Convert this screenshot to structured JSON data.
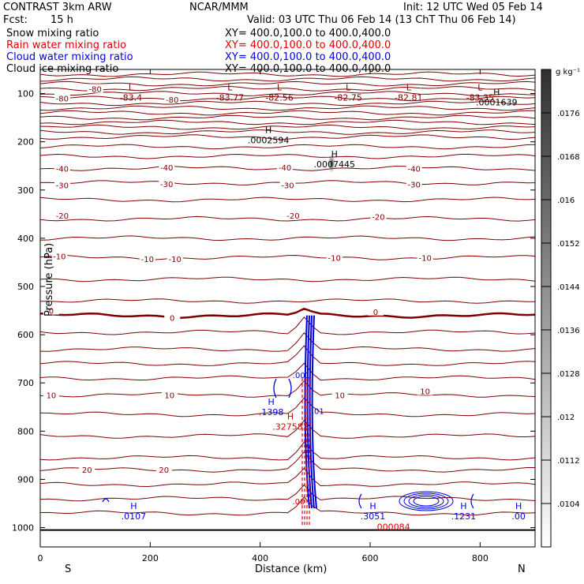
{
  "header": {
    "model": "CONTRAST  3km ARW",
    "org": "NCAR/MMM",
    "init": "Init: 12 UTC Wed 05 Feb 14",
    "fcst_label": "Fcst:",
    "fcst_value": "15 h",
    "valid": "Valid: 03 UTC Thu 06 Feb 14 (13 ChT Thu 06 Feb 14)",
    "fields": [
      {
        "name": "Snow mixing ratio",
        "color": "#000000",
        "xy": "XY= 400.0,100.0 to 400.0,400.0"
      },
      {
        "name": "Rain water mixing ratio",
        "color": "#e00000",
        "xy": "XY= 400.0,100.0 to 400.0,400.0"
      },
      {
        "name": "Cloud water mixing ratio",
        "color": "#0000e0",
        "xy": "XY= 400.0,100.0 to 400.0,400.0"
      },
      {
        "name": "Cloud ice mixing ratio",
        "color": "#000000",
        "xy": "XY= 400.0,100.0 to 400.0,400.0"
      }
    ]
  },
  "chart_data": {
    "type": "cross-section contour",
    "xlabel": "Distance (km)",
    "ylabel": "Pressure (hPa)",
    "xlim": [
      0,
      900
    ],
    "ylim": [
      1040,
      50
    ],
    "x_ticks": [
      0,
      200,
      400,
      600,
      800
    ],
    "y_ticks": [
      100,
      200,
      300,
      400,
      500,
      600,
      700,
      800,
      900,
      1000
    ],
    "x_end_labels": {
      "left": "S",
      "right": "N"
    },
    "colorbar": {
      "unit": "g kg⁻¹",
      "labels": [
        ".0176",
        ".0168",
        ".016",
        ".0152",
        ".0144",
        ".0136",
        ".0128",
        ".012",
        ".0112",
        ".0104"
      ]
    },
    "temperature_contours_C": [
      {
        "p": 90,
        "label": "-80"
      },
      {
        "p": 110,
        "label": "-80"
      },
      {
        "p": 112,
        "label": "-80"
      },
      {
        "p": 255,
        "label": "-40"
      },
      {
        "p": 285,
        "label": "-30"
      },
      {
        "p": 360,
        "label": "-20"
      },
      {
        "p": 440,
        "label": "-10"
      },
      {
        "p": 560,
        "label": "0"
      },
      {
        "p": 725,
        "label": "10"
      },
      {
        "p": 880,
        "label": "20"
      }
    ],
    "temperature_contour_labels": [
      {
        "x": 100,
        "p": 90,
        "text": "-80"
      },
      {
        "x": 40,
        "p": 110,
        "text": "-80"
      },
      {
        "x": 240,
        "p": 112,
        "text": "-80"
      },
      {
        "x": 40,
        "p": 255,
        "text": "-40"
      },
      {
        "x": 230,
        "p": 253,
        "text": "-40"
      },
      {
        "x": 445,
        "p": 253,
        "text": "-40"
      },
      {
        "x": 680,
        "p": 255,
        "text": "-40"
      },
      {
        "x": 40,
        "p": 290,
        "text": "-30"
      },
      {
        "x": 230,
        "p": 287,
        "text": "-30"
      },
      {
        "x": 450,
        "p": 290,
        "text": "-30"
      },
      {
        "x": 680,
        "p": 288,
        "text": "-30"
      },
      {
        "x": 40,
        "p": 353,
        "text": "-20"
      },
      {
        "x": 460,
        "p": 353,
        "text": "-20"
      },
      {
        "x": 615,
        "p": 355,
        "text": "-20"
      },
      {
        "x": 35,
        "p": 437,
        "text": "-10"
      },
      {
        "x": 195,
        "p": 443,
        "text": "-10"
      },
      {
        "x": 245,
        "p": 443,
        "text": "-10"
      },
      {
        "x": 535,
        "p": 440,
        "text": "-10"
      },
      {
        "x": 700,
        "p": 440,
        "text": "-10"
      },
      {
        "x": 20,
        "p": 550,
        "text": "0"
      },
      {
        "x": 240,
        "p": 565,
        "text": "0"
      },
      {
        "x": 610,
        "p": 552,
        "text": "0"
      },
      {
        "x": 20,
        "p": 725,
        "text": "10"
      },
      {
        "x": 235,
        "p": 725,
        "text": "10"
      },
      {
        "x": 545,
        "p": 725,
        "text": "10"
      },
      {
        "x": 700,
        "p": 717,
        "text": "10"
      },
      {
        "x": 85,
        "p": 880,
        "text": "20"
      },
      {
        "x": 225,
        "p": 880,
        "text": "20"
      }
    ],
    "extrema": [
      {
        "x": 165,
        "p": 100,
        "mark": "L",
        "value": "-83.4",
        "color": "#800000"
      },
      {
        "x": 345,
        "p": 100,
        "mark": "L",
        "value": "-83.77",
        "color": "#800000"
      },
      {
        "x": 435,
        "p": 100,
        "mark": "L",
        "value": "-82.56",
        "color": "#800000"
      },
      {
        "x": 560,
        "p": 100,
        "mark": "L",
        "value": "-82.75",
        "color": "#800000"
      },
      {
        "x": 670,
        "p": 100,
        "mark": "L",
        "value": "-82.81",
        "color": "#800000"
      },
      {
        "x": 800,
        "p": 100,
        "mark": "L",
        "value": "-83.35",
        "color": "#800000"
      },
      {
        "x": 830,
        "p": 110,
        "mark": "H",
        "value": ".0001639",
        "color": "#000000"
      },
      {
        "x": 415,
        "p": 188,
        "mark": "H",
        "value": ".0002594",
        "color": "#000000"
      },
      {
        "x": 535,
        "p": 238,
        "mark": "H",
        "value": ".0007445",
        "color": "#000000"
      },
      {
        "x": 420,
        "p": 752,
        "mark": "H",
        "value": ".1398",
        "color": "#0000e0"
      },
      {
        "x": 455,
        "p": 782,
        "mark": "H",
        "value": ".327583",
        "color": "#e00000"
      },
      {
        "x": 170,
        "p": 968,
        "mark": "H",
        "value": ".0107",
        "color": "#0000e0"
      },
      {
        "x": 605,
        "p": 968,
        "mark": "H",
        "value": ".3051",
        "color": "#0000e0"
      },
      {
        "x": 770,
        "p": 968,
        "mark": "H",
        "value": ".1231",
        "color": "#0000e0"
      },
      {
        "x": 870,
        "p": 968,
        "mark": "H",
        "value": ".00",
        "color": "#0000e0"
      },
      {
        "x": 640,
        "p": 990,
        "mark": "",
        "value": ".000084",
        "color": "#e00000"
      }
    ],
    "small_labels": [
      {
        "x": 475,
        "p": 690,
        "text": ".001",
        "color": "#0000e0"
      },
      {
        "x": 505,
        "p": 764,
        "text": ".01",
        "color": "#0000e0"
      },
      {
        "x": 470,
        "p": 952,
        "text": ".00",
        "color": "#e00000"
      }
    ]
  }
}
